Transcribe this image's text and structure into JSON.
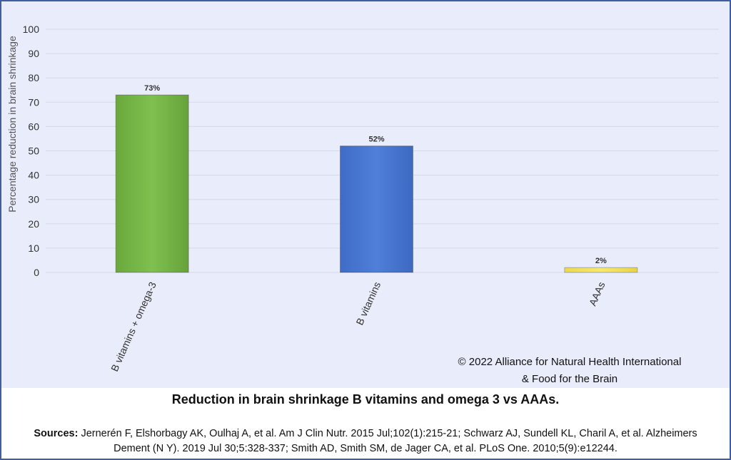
{
  "chart_data": {
    "type": "bar",
    "categories": [
      "B vitamins + omega-3",
      "B vitamins",
      "AAAs"
    ],
    "values": [
      73,
      52,
      2
    ],
    "data_labels": [
      "73%",
      "52%",
      "2%"
    ],
    "colors": [
      "#78b84a",
      "#4a78d4",
      "#f2e36a"
    ],
    "ylabel": "Percentage reduction in brain shrinkage",
    "ylim": [
      0,
      100
    ],
    "yticks": [
      0,
      10,
      20,
      30,
      40,
      50,
      60,
      70,
      80,
      90,
      100
    ],
    "grid": true
  },
  "copyright": {
    "line1": "© 2022 Alliance for Natural Health International",
    "line2": "& Food for the Brain"
  },
  "caption": "Reduction in brain shrinkage B vitamins and omega 3 vs AAAs.",
  "sources": {
    "label": "Sources:",
    "text": " Jernerén F, Elshorbagy AK, Oulhaj A, et al. Am J Clin Nutr. 2015 Jul;102(1):215-21; Schwarz AJ, Sundell KL, Charil A, et al. Alzheimers Dement (N Y). 2019 Jul 30;5:328-337; Smith AD, Smith SM, de Jager CA, et al. PLoS One. 2010;5(9):e12244."
  }
}
